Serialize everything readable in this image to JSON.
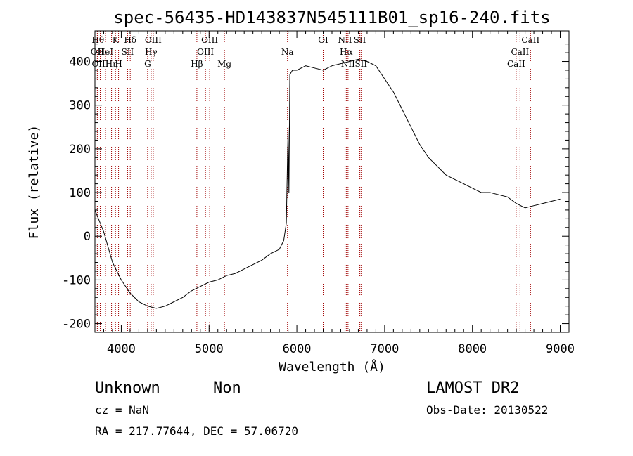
{
  "chart_data": {
    "type": "line",
    "title": "spec-56435-HD143837N545111B01_sp16-240.fits",
    "xlabel": "Wavelength (Å)",
    "ylabel": "Flux (relative)",
    "xlim": [
      3700,
      9100
    ],
    "ylim": [
      -220,
      470
    ],
    "xticks": [
      4000,
      5000,
      6000,
      7000,
      8000,
      9000
    ],
    "yticks": [
      -200,
      -100,
      0,
      100,
      200,
      300,
      400
    ],
    "grid": false,
    "series": [
      {
        "x": [
          3700,
          3800,
          3900,
          4000,
          4100,
          4200,
          4300,
          4400,
          4500,
          4600,
          4700,
          4800,
          4900,
          5000,
          5100,
          5200,
          5300,
          5400,
          5500,
          5600,
          5700,
          5800,
          5850,
          5880,
          5900,
          5910,
          5920,
          5950,
          6000,
          6100,
          6200,
          6300,
          6400,
          6500,
          6600,
          6700,
          6800,
          6900,
          7000,
          7100,
          7200,
          7300,
          7400,
          7500,
          7600,
          7700,
          7800,
          7900,
          8000,
          8100,
          8200,
          8300,
          8400,
          8500,
          8600,
          8700,
          8800,
          8900,
          9000
        ],
        "y": [
          60,
          10,
          -60,
          -100,
          -130,
          -150,
          -160,
          -165,
          -160,
          -150,
          -140,
          -125,
          -115,
          -105,
          -100,
          -90,
          -85,
          -75,
          -65,
          -55,
          -40,
          -30,
          -10,
          30,
          250,
          100,
          370,
          380,
          380,
          390,
          385,
          380,
          390,
          395,
          400,
          405,
          400,
          390,
          360,
          330,
          290,
          250,
          210,
          180,
          160,
          140,
          130,
          120,
          110,
          100,
          100,
          95,
          90,
          75,
          65,
          70,
          75,
          80,
          85
        ]
      }
    ],
    "line_markers": [
      {
        "wl": 3734,
        "row": 0,
        "label": "Hθ"
      },
      {
        "wl": 3727,
        "row": 1,
        "label": "OII"
      },
      {
        "wl": 3760,
        "row": 2,
        "label": "OIII"
      },
      {
        "wl": 3820,
        "row": 1,
        "label": "HeI"
      },
      {
        "wl": 3889,
        "row": 2,
        "label": "Hη"
      },
      {
        "wl": 3934,
        "row": 0,
        "label": "K"
      },
      {
        "wl": 3969,
        "row": 2,
        "label": "H"
      },
      {
        "wl": 4072,
        "row": 1,
        "label": "SII"
      },
      {
        "wl": 4102,
        "row": 0,
        "label": "Hδ"
      },
      {
        "wl": 4300,
        "row": 2,
        "label": "G"
      },
      {
        "wl": 4340,
        "row": 1,
        "label": "Hγ"
      },
      {
        "wl": 4364,
        "row": 0,
        "label": "OIII"
      },
      {
        "wl": 4861,
        "row": 2,
        "label": "Hβ"
      },
      {
        "wl": 4959,
        "row": 1,
        "label": "OIII"
      },
      {
        "wl": 5007,
        "row": 0,
        "label": "OIII"
      },
      {
        "wl": 5175,
        "row": 2,
        "label": "Mg"
      },
      {
        "wl": 5893,
        "row": 1,
        "label": "Na"
      },
      {
        "wl": 6300,
        "row": 0,
        "label": "OI"
      },
      {
        "wl": 6548,
        "row": 0,
        "label": "NII"
      },
      {
        "wl": 6563,
        "row": 1,
        "label": "Hα"
      },
      {
        "wl": 6583,
        "row": 2,
        "label": "NII"
      },
      {
        "wl": 6717,
        "row": 0,
        "label": "SII"
      },
      {
        "wl": 6731,
        "row": 2,
        "label": "SII"
      },
      {
        "wl": 8498,
        "row": 2,
        "label": "CaII"
      },
      {
        "wl": 8542,
        "row": 1,
        "label": "CaII"
      },
      {
        "wl": 8662,
        "row": 0,
        "label": "CaII"
      }
    ]
  },
  "info": {
    "classification": "Unknown",
    "subclass": "Non",
    "survey": "LAMOST DR2",
    "cz": "cz = NaN",
    "obs_date": "Obs-Date: 20130522",
    "coords": "RA = 217.77644, DEC =  57.06720"
  }
}
